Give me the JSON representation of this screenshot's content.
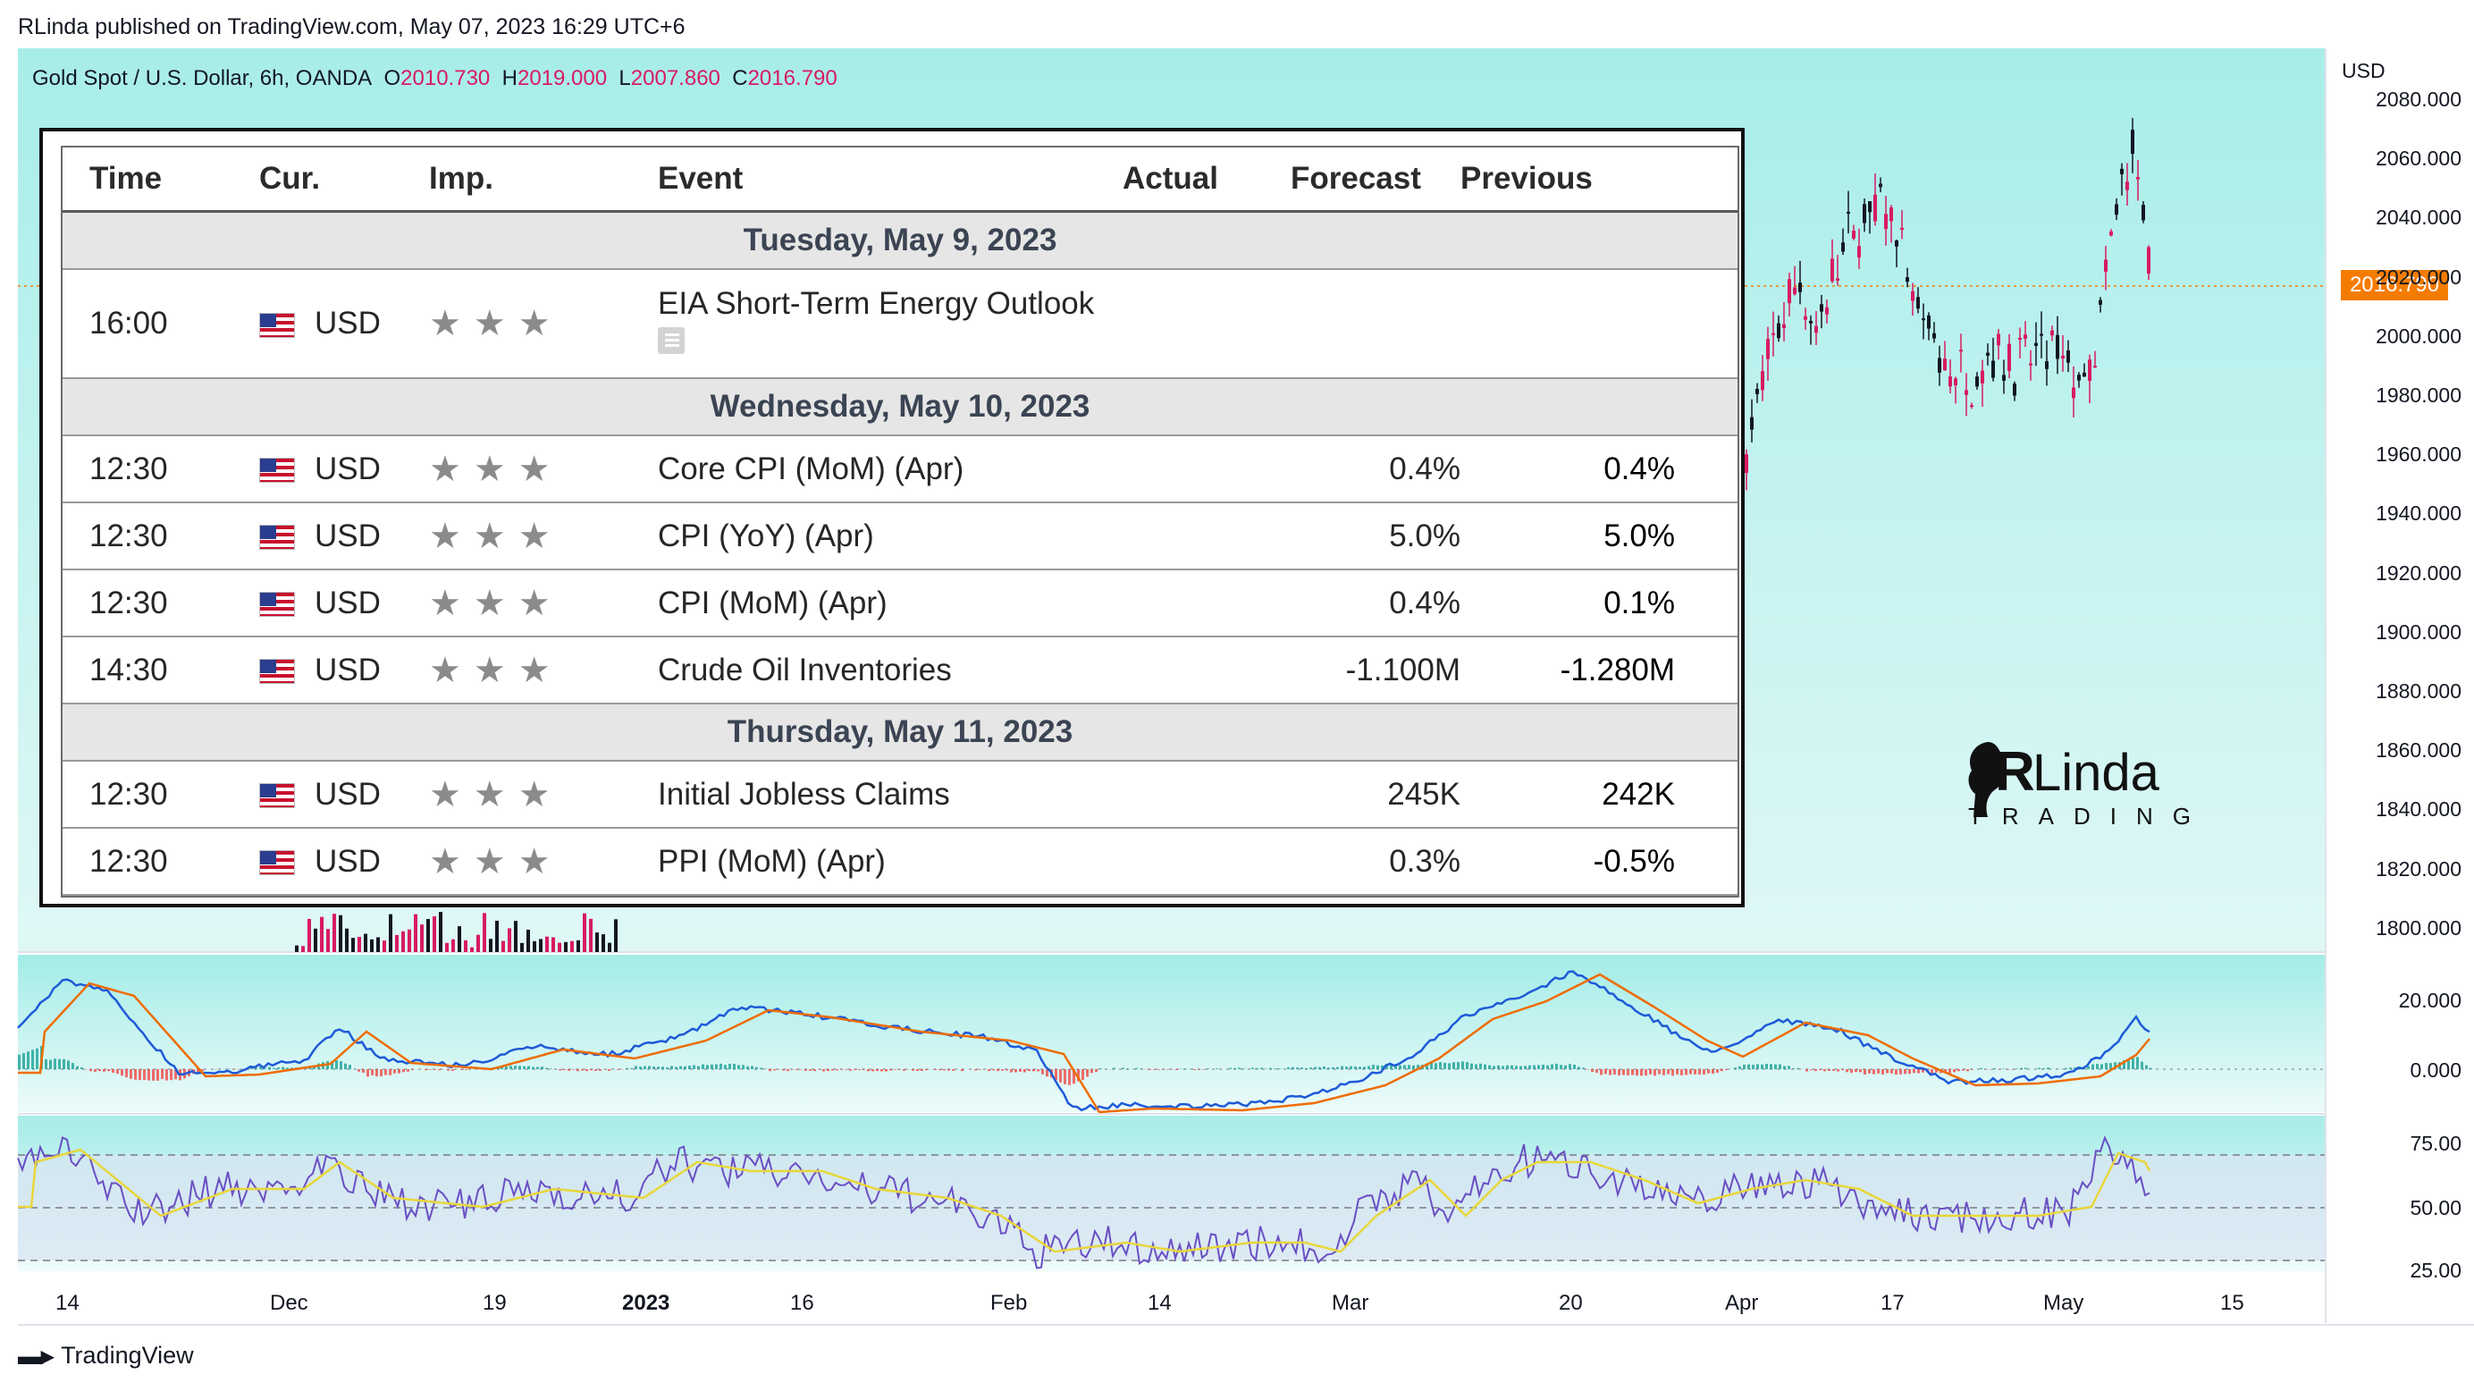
{
  "header": {
    "published": "RLinda published on TradingView.com, May 07, 2023 16:29 UTC+6"
  },
  "symbol": {
    "title": "Gold Spot / U.S. Dollar, 6h, OANDA",
    "o_label": "O",
    "o": "2010.730",
    "h_label": "H",
    "h": "2019.000",
    "l_label": "L",
    "l": "2007.860",
    "c_label": "C",
    "c": "2016.790"
  },
  "currency": "USD",
  "last_price": "2016.790",
  "price_axis": [
    "2080.000",
    "2060.000",
    "2040.000",
    "2020.000",
    "2000.000",
    "1980.000",
    "1960.000",
    "1940.000",
    "1920.000",
    "1900.000",
    "1880.000",
    "1860.000",
    "1840.000",
    "1820.000",
    "1800.000"
  ],
  "macd_axis": [
    "20.000",
    "0.000"
  ],
  "rsi_axis": [
    "75.00",
    "50.00",
    "25.00"
  ],
  "time_axis": [
    {
      "label": "14",
      "bold": false
    },
    {
      "label": "Dec",
      "bold": false
    },
    {
      "label": "19",
      "bold": false
    },
    {
      "label": "2023",
      "bold": true
    },
    {
      "label": "16",
      "bold": false
    },
    {
      "label": "Feb",
      "bold": false
    },
    {
      "label": "14",
      "bold": false
    },
    {
      "label": "Mar",
      "bold": false
    },
    {
      "label": "20",
      "bold": false
    },
    {
      "label": "Apr",
      "bold": false
    },
    {
      "label": "17",
      "bold": false
    },
    {
      "label": "May",
      "bold": false
    },
    {
      "label": "15",
      "bold": false
    }
  ],
  "calendar": {
    "headers": {
      "time": "Time",
      "cur": "Cur.",
      "imp": "Imp.",
      "event": "Event",
      "actual": "Actual",
      "forecast": "Forecast",
      "previous": "Previous"
    },
    "days": [
      {
        "date": "Tuesday, May 9, 2023",
        "events": [
          {
            "time": "16:00",
            "cur": "USD",
            "imp": "★★★",
            "event": "EIA Short-Term Energy Outlook",
            "actual": "",
            "forecast": "",
            "previous": "",
            "has_doc": true
          }
        ]
      },
      {
        "date": "Wednesday, May 10, 2023",
        "events": [
          {
            "time": "12:30",
            "cur": "USD",
            "imp": "★★★",
            "event": "Core CPI (MoM) (Apr)",
            "actual": "",
            "forecast": "0.4%",
            "previous": "0.4%"
          },
          {
            "time": "12:30",
            "cur": "USD",
            "imp": "★★★",
            "event": "CPI (YoY) (Apr)",
            "actual": "",
            "forecast": "5.0%",
            "previous": "5.0%"
          },
          {
            "time": "12:30",
            "cur": "USD",
            "imp": "★★★",
            "event": "CPI (MoM) (Apr)",
            "actual": "",
            "forecast": "0.4%",
            "previous": "0.1%"
          },
          {
            "time": "14:30",
            "cur": "USD",
            "imp": "★★★",
            "event": "Crude Oil Inventories",
            "actual": "",
            "forecast": "-1.100M",
            "previous": "-1.280M"
          }
        ]
      },
      {
        "date": "Thursday, May 11, 2023",
        "events": [
          {
            "time": "12:30",
            "cur": "USD",
            "imp": "★★★",
            "event": "Initial Jobless Claims",
            "actual": "",
            "forecast": "245K",
            "previous": "242K"
          },
          {
            "time": "12:30",
            "cur": "USD",
            "imp": "★★★",
            "event": "PPI (MoM) (Apr)",
            "actual": "",
            "forecast": "0.3%",
            "previous": "-0.5%"
          }
        ]
      }
    ]
  },
  "brand": {
    "name_r": "R",
    "name_rest": "Linda",
    "sub": "TRADING"
  },
  "footer": {
    "logo": "TradingView"
  },
  "colors": {
    "panel_bg": "#b4efec",
    "rsi_band": "#d8e4f1",
    "bull": "#131722",
    "bear": "#d81b60",
    "macd": "#1e5ad8",
    "signal": "#ef6c00",
    "rsi": "#6a4fc4",
    "rsi_ma": "#e8d63a",
    "price_tag": "#f57c00"
  }
}
